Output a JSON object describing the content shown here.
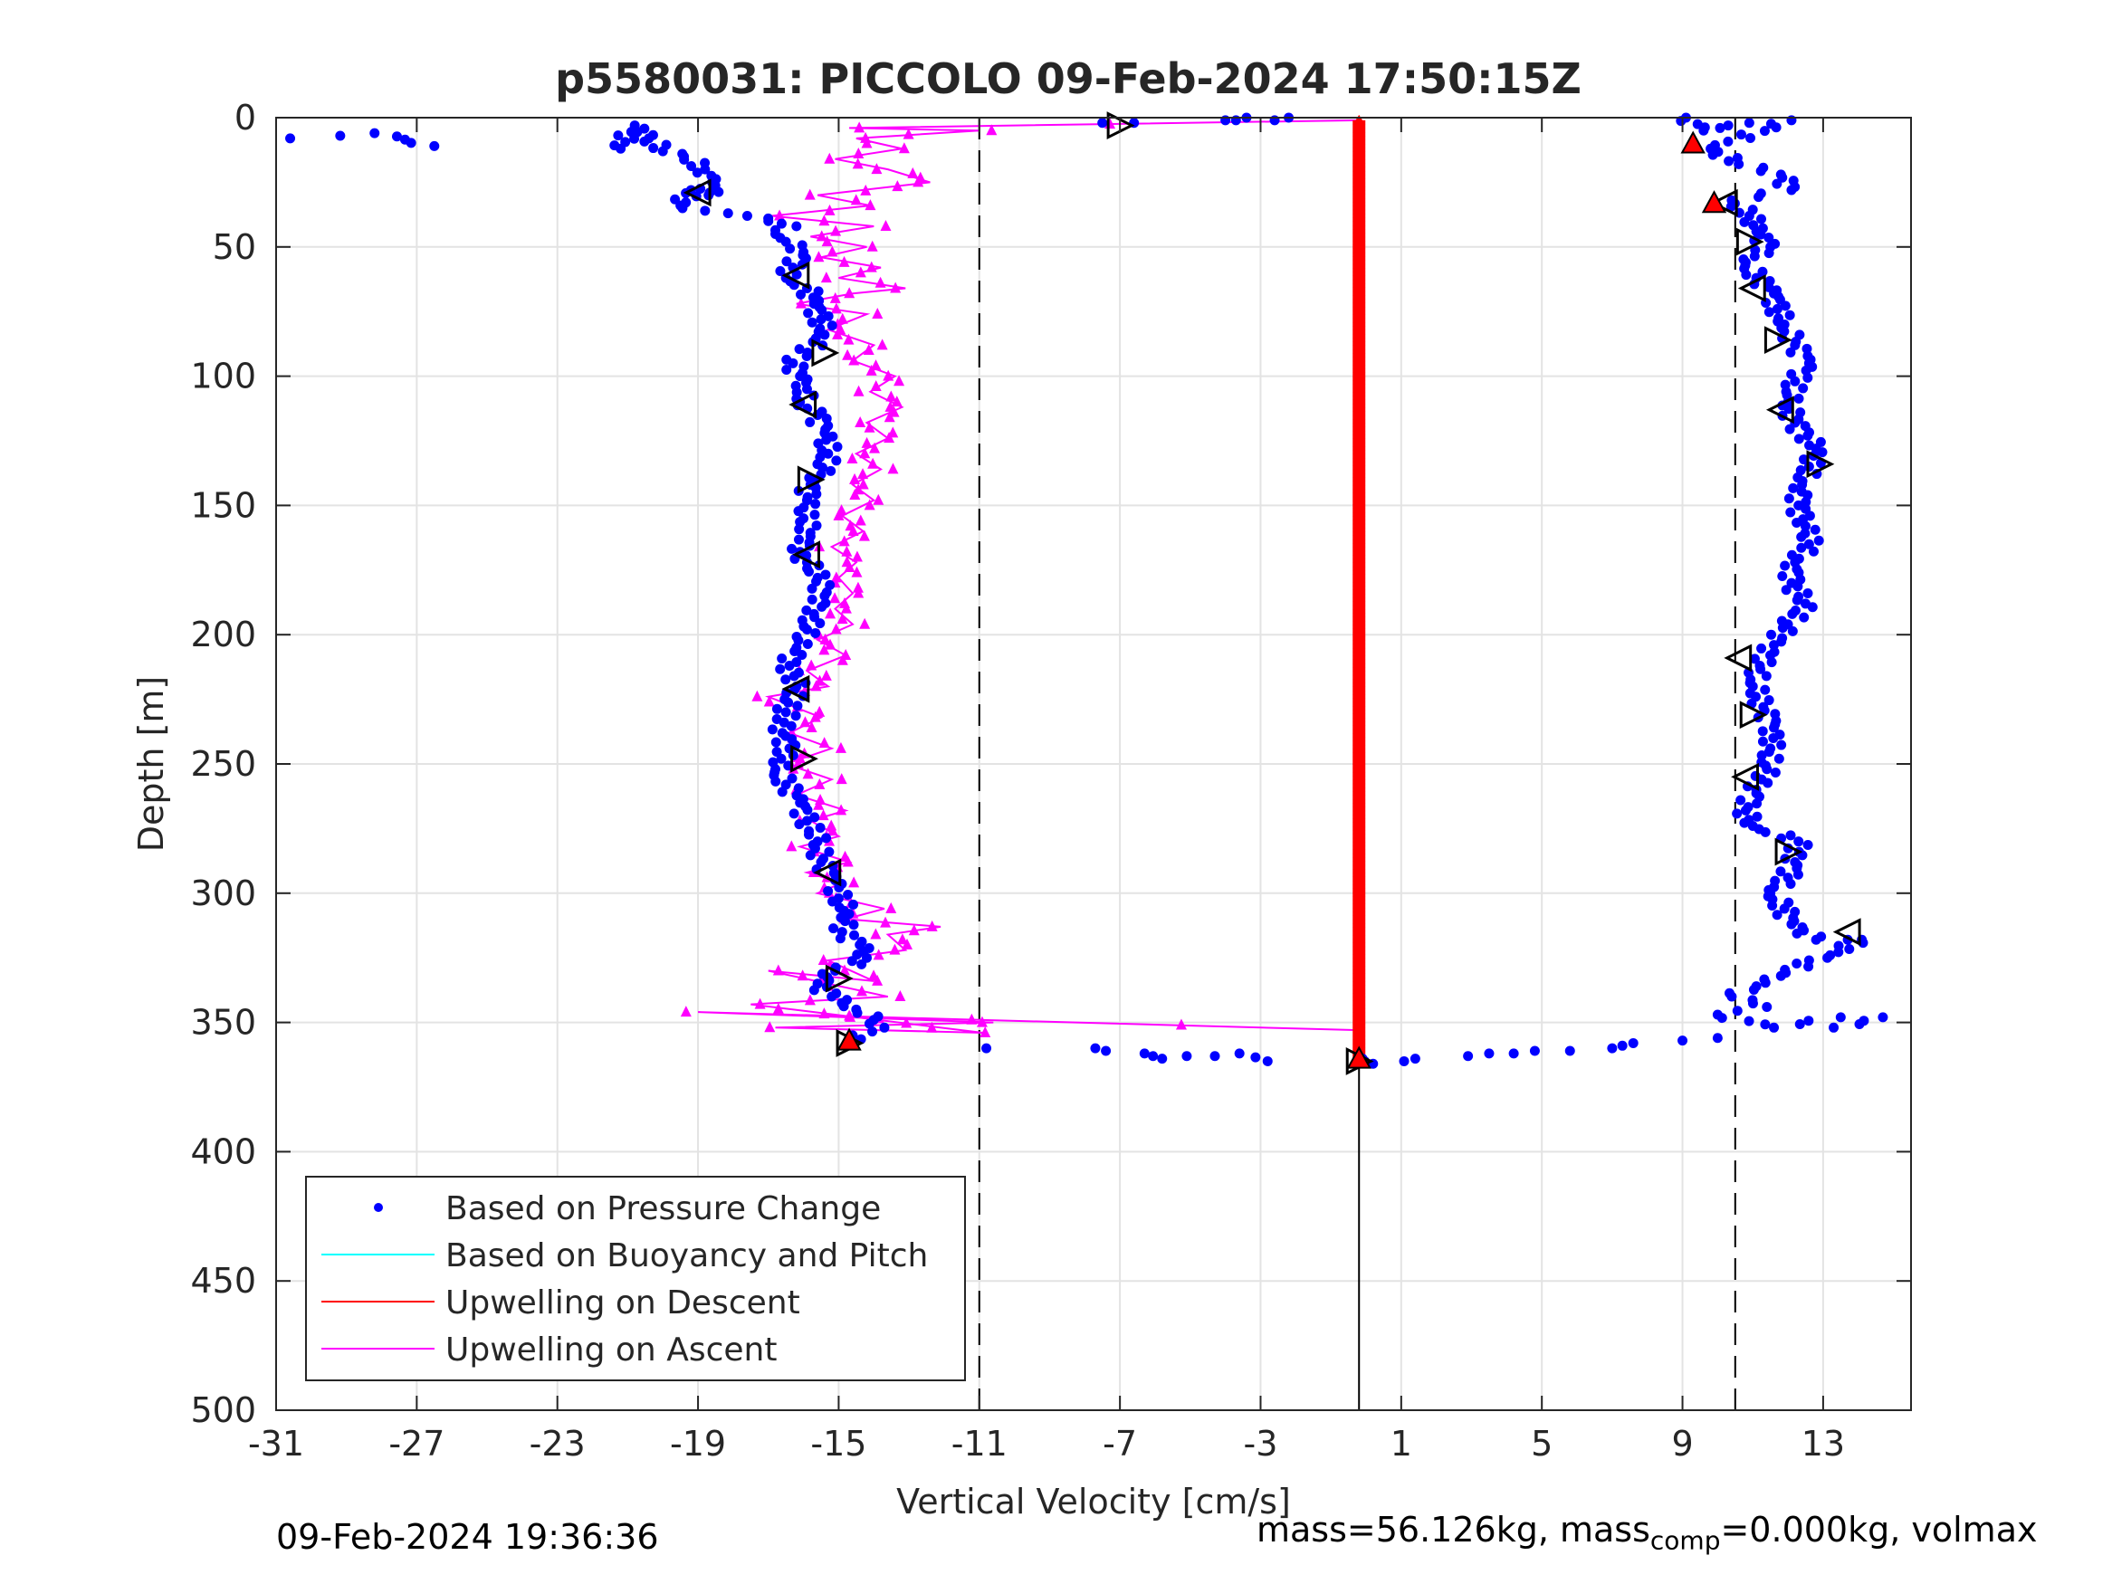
{
  "chart_data": {
    "type": "scatter",
    "title": "p5580031: PICCOLO 09-Feb-2024 17:50:15Z",
    "xlabel": "Vertical Velocity [cm/s]",
    "ylabel": "Depth [m]",
    "xlim": [
      -31,
      15.5
    ],
    "ylim": [
      0,
      500
    ],
    "y_reversed": true,
    "grid": true,
    "x_ticks": [
      "-31",
      "-27",
      "-23",
      "-19",
      "-15",
      "-11",
      "-7",
      "-3",
      "1",
      "5",
      "9",
      "13"
    ],
    "x_tick_values": [
      -31,
      -27,
      -23,
      -19,
      -15,
      -11,
      -7,
      -3,
      1,
      5,
      9,
      13
    ],
    "y_ticks": [
      "0",
      "50",
      "100",
      "150",
      "200",
      "250",
      "300",
      "350",
      "400",
      "450",
      "500"
    ],
    "y_tick_values": [
      0,
      50,
      100,
      150,
      200,
      250,
      300,
      350,
      400,
      450,
      500
    ],
    "legend_position": "bottom-left",
    "legend": [
      {
        "label": "Based on Pressure Change",
        "color": "#0000ff",
        "marker": "dot"
      },
      {
        "label": "Based on Buoyancy and Pitch",
        "color": "#00ffff",
        "marker": "line"
      },
      {
        "label": "Upwelling on Descent",
        "color": "#ff0000",
        "marker": "line"
      },
      {
        "label": "Upwelling on Ascent",
        "color": "#ff00ff",
        "marker": "line"
      }
    ],
    "reference_lines_dashed": [
      -11,
      10.5
    ],
    "reference_line_solid": {
      "x": -0.2,
      "from": 365,
      "to": 500
    },
    "series": [
      {
        "name": "Based on Pressure Change",
        "color": "#0000ff",
        "descent_points": [
          [
            -30.6,
            8
          ],
          [
            -28.2,
            6
          ],
          [
            -26.5,
            11
          ],
          [
            -21.2,
            12
          ],
          [
            -20.8,
            3
          ],
          [
            -20,
            13
          ],
          [
            -19.4,
            15
          ],
          [
            -18.8,
            20
          ],
          [
            -18.6,
            25
          ],
          [
            -18.7,
            30
          ],
          [
            -19.2,
            28
          ],
          [
            -19.5,
            34
          ],
          [
            -18.8,
            36
          ],
          [
            -17.6,
            38
          ],
          [
            -17.0,
            40
          ],
          [
            -16.2,
            42
          ],
          [
            -16.8,
            45
          ],
          [
            -16.5,
            48
          ],
          [
            -16,
            52
          ],
          [
            -16.3,
            58
          ],
          [
            -16.5,
            62
          ],
          [
            -15.9,
            66
          ],
          [
            -15.7,
            72
          ],
          [
            -15.5,
            78
          ],
          [
            -15.4,
            84
          ],
          [
            -16.3,
            95
          ],
          [
            -16.1,
            100
          ],
          [
            -15.9,
            105
          ],
          [
            -16.1,
            110
          ],
          [
            -15.6,
            115
          ],
          [
            -15.4,
            122
          ],
          [
            -15.3,
            130
          ],
          [
            -15.5,
            138
          ],
          [
            -15.8,
            142
          ],
          [
            -15.9,
            148
          ],
          [
            -16,
            155
          ],
          [
            -15.8,
            162
          ],
          [
            -16.1,
            168
          ],
          [
            -15.9,
            172
          ],
          [
            -15.6,
            178
          ],
          [
            -15.4,
            185
          ],
          [
            -15.7,
            192
          ],
          [
            -15.9,
            198
          ],
          [
            -16.2,
            205
          ],
          [
            -16.4,
            212
          ],
          [
            -16.2,
            220
          ],
          [
            -16.5,
            230
          ],
          [
            -16.6,
            238
          ],
          [
            -16.4,
            244
          ],
          [
            -16.8,
            252
          ],
          [
            -16.5,
            258
          ],
          [
            -16.1,
            265
          ],
          [
            -15.9,
            272
          ],
          [
            -15.6,
            280
          ],
          [
            -15.5,
            288
          ],
          [
            -15.1,
            295
          ],
          [
            -15.0,
            302
          ],
          [
            -14.7,
            308
          ],
          [
            -14.9,
            315
          ],
          [
            -14.4,
            320
          ],
          [
            -14.2,
            325
          ],
          [
            -15.1,
            330
          ],
          [
            -15.6,
            335
          ],
          [
            -15.2,
            340
          ],
          [
            -14.5,
            345
          ],
          [
            -14.0,
            349
          ],
          [
            -13.7,
            352
          ],
          [
            -14.6,
            355
          ],
          [
            -14.7,
            358
          ],
          [
            -10.8,
            360
          ],
          [
            -7.7,
            360
          ],
          [
            -7.4,
            361
          ],
          [
            -6.3,
            362
          ],
          [
            -5.8,
            364
          ],
          [
            -5.1,
            363
          ],
          [
            -4.3,
            363
          ],
          [
            -3.6,
            362
          ],
          [
            -2.8,
            365
          ],
          [
            -0.1,
            364
          ],
          [
            0.2,
            366
          ],
          [
            1.4,
            364
          ]
        ],
        "ascent_points": [
          [
            -7.5,
            2
          ],
          [
            -6.6,
            2
          ],
          [
            -4,
            1
          ],
          [
            -3.7,
            1
          ],
          [
            -3.4,
            0
          ],
          [
            -2.6,
            1
          ],
          [
            -2.2,
            0
          ],
          [
            9.1,
            0
          ],
          [
            9.6,
            5
          ],
          [
            10.3,
            3
          ],
          [
            10.9,
            2
          ],
          [
            12.1,
            1
          ],
          [
            9.8,
            12
          ],
          [
            10.6,
            18
          ],
          [
            11.8,
            22
          ],
          [
            12.1,
            28
          ],
          [
            10.4,
            32
          ],
          [
            10.9,
            38
          ],
          [
            11.1,
            44
          ],
          [
            11.5,
            50
          ],
          [
            10.8,
            56
          ],
          [
            11.1,
            62
          ],
          [
            11.6,
            68
          ],
          [
            11.7,
            74
          ],
          [
            11.9,
            80
          ],
          [
            12.2,
            88
          ],
          [
            12.6,
            95
          ],
          [
            12.2,
            102
          ],
          [
            12.0,
            110
          ],
          [
            12.2,
            118
          ],
          [
            12.8,
            128
          ],
          [
            12.6,
            135
          ],
          [
            12.4,
            142
          ],
          [
            12.3,
            150
          ],
          [
            12.5,
            158
          ],
          [
            12.6,
            165
          ],
          [
            12.2,
            172
          ],
          [
            12.1,
            180
          ],
          [
            12.5,
            188
          ],
          [
            12.0,
            196
          ],
          [
            11.6,
            204
          ],
          [
            11.2,
            212
          ],
          [
            11.0,
            220
          ],
          [
            11.3,
            228
          ],
          [
            11.6,
            236
          ],
          [
            11.5,
            244
          ],
          [
            11.4,
            252
          ],
          [
            11.1,
            260
          ],
          [
            10.8,
            268
          ],
          [
            11.0,
            274
          ],
          [
            12.3,
            280
          ],
          [
            12.2,
            288
          ],
          [
            12.0,
            294
          ],
          [
            11.5,
            300
          ],
          [
            11.9,
            306
          ],
          [
            12.1,
            312
          ],
          [
            12.8,
            318
          ],
          [
            13.7,
            318
          ],
          [
            14.1,
            318
          ],
          [
            13.2,
            324
          ],
          [
            12.6,
            326
          ],
          [
            11.8,
            332
          ],
          [
            11.1,
            336
          ],
          [
            10.4,
            340
          ],
          [
            11.4,
            344
          ],
          [
            10.0,
            347
          ],
          [
            11.6,
            352
          ],
          [
            13.5,
            348
          ],
          [
            14.7,
            348
          ],
          [
            13.3,
            352
          ],
          [
            10.0,
            356
          ],
          [
            9.0,
            357
          ],
          [
            7.6,
            358
          ],
          [
            7.0,
            360
          ],
          [
            5.8,
            361
          ],
          [
            4.8,
            361
          ],
          [
            4.2,
            362
          ],
          [
            3.5,
            362
          ],
          [
            2.9,
            363
          ]
        ]
      },
      {
        "name": "Based on Buoyancy and Pitch",
        "color": "#00ffff",
        "points": []
      },
      {
        "name": "Upwelling on Descent",
        "color": "#ff0000",
        "x": -0.2,
        "depth_range": [
          1,
          365
        ]
      },
      {
        "name": "Upwelling on Ascent",
        "color": "#ff00ff",
        "points": [
          [
            -0.2,
            353
          ],
          [
            -11.0,
            349
          ],
          [
            -19.0,
            346
          ],
          [
            -10.6,
            350
          ],
          [
            -16.8,
            352
          ],
          [
            -10.9,
            354
          ],
          [
            -17.5,
            343
          ],
          [
            -13.6,
            340
          ],
          [
            -17.0,
            330
          ],
          [
            -14.0,
            334
          ],
          [
            -15.3,
            326
          ],
          [
            -13.1,
            322
          ],
          [
            -13.6,
            316
          ],
          [
            -12.1,
            313
          ],
          [
            -14.8,
            310
          ],
          [
            -13.7,
            306
          ],
          [
            -15.6,
            300
          ],
          [
            -14.9,
            296
          ],
          [
            -15.9,
            292
          ],
          [
            -14.7,
            288
          ],
          [
            -16.1,
            282
          ],
          [
            -15.0,
            278
          ],
          [
            -15.8,
            272
          ],
          [
            -14.8,
            268
          ],
          [
            -16.2,
            262
          ],
          [
            -15.2,
            256
          ],
          [
            -16.5,
            250
          ],
          [
            -15.2,
            244
          ],
          [
            -16.4,
            238
          ],
          [
            -15.5,
            232
          ],
          [
            -17.0,
            224
          ],
          [
            -15.3,
            220
          ],
          [
            -15.9,
            214
          ],
          [
            -14.8,
            208
          ],
          [
            -15.6,
            202
          ],
          [
            -14.6,
            196
          ],
          [
            -15.1,
            190
          ],
          [
            -14.6,
            184
          ],
          [
            -15.0,
            178
          ],
          [
            -14.5,
            172
          ],
          [
            -15.2,
            166
          ],
          [
            -14.3,
            160
          ],
          [
            -14.9,
            154
          ],
          [
            -14.0,
            148
          ],
          [
            -14.6,
            142
          ],
          [
            -13.8,
            136
          ],
          [
            -14.5,
            130
          ],
          [
            -13.6,
            124
          ],
          [
            -14.2,
            118
          ],
          [
            -13.2,
            112
          ],
          [
            -14.1,
            106
          ],
          [
            -13.4,
            100
          ],
          [
            -14.6,
            94
          ],
          [
            -14.0,
            88
          ],
          [
            -15.3,
            82
          ],
          [
            -14.2,
            76
          ],
          [
            -16.2,
            72
          ],
          [
            -14.6,
            68
          ],
          [
            -13.1,
            66
          ],
          [
            -15.0,
            62
          ],
          [
            -13.8,
            58
          ],
          [
            -15.5,
            54
          ],
          [
            -14.2,
            50
          ],
          [
            -15.8,
            46
          ],
          [
            -14.0,
            42
          ],
          [
            -16.9,
            38
          ],
          [
            -14.1,
            34
          ],
          [
            -15.6,
            30
          ],
          [
            -12.4,
            25
          ],
          [
            -13.6,
            20
          ],
          [
            -15.1,
            16
          ],
          [
            -13.2,
            12
          ],
          [
            -14.5,
            8
          ],
          [
            -11.0,
            5
          ],
          [
            -14.7,
            4
          ],
          [
            -0.2,
            1
          ]
        ]
      }
    ],
    "triangle_markers": [
      {
        "x": -7.0,
        "depth": 3,
        "dir": "right"
      },
      {
        "x": -19.0,
        "depth": 29,
        "dir": "left"
      },
      {
        "x": -16.2,
        "depth": 61,
        "dir": "left"
      },
      {
        "x": -15.4,
        "depth": 91,
        "dir": "right"
      },
      {
        "x": -16.0,
        "depth": 111,
        "dir": "left"
      },
      {
        "x": -15.8,
        "depth": 140,
        "dir": "right"
      },
      {
        "x": -15.9,
        "depth": 169,
        "dir": "left"
      },
      {
        "x": -16.2,
        "depth": 221,
        "dir": "left"
      },
      {
        "x": -16.0,
        "depth": 248,
        "dir": "right"
      },
      {
        "x": -15.3,
        "depth": 292,
        "dir": "left"
      },
      {
        "x": -15.0,
        "depth": 333,
        "dir": "right"
      },
      {
        "x": -14.7,
        "depth": 358,
        "dir": "right"
      },
      {
        "x": 10.2,
        "depth": 33,
        "dir": "left"
      },
      {
        "x": 10.9,
        "depth": 48,
        "dir": "right"
      },
      {
        "x": 11.0,
        "depth": 66,
        "dir": "left"
      },
      {
        "x": 11.7,
        "depth": 86,
        "dir": "right"
      },
      {
        "x": 11.8,
        "depth": 113,
        "dir": "left"
      },
      {
        "x": 12.9,
        "depth": 134,
        "dir": "right"
      },
      {
        "x": 10.6,
        "depth": 209,
        "dir": "left"
      },
      {
        "x": 11.0,
        "depth": 231,
        "dir": "right"
      },
      {
        "x": 10.8,
        "depth": 255,
        "dir": "left"
      },
      {
        "x": 12.0,
        "depth": 284,
        "dir": "right"
      },
      {
        "x": 13.7,
        "depth": 315,
        "dir": "left"
      },
      {
        "x": -0.2,
        "depth": 365,
        "dir": "right"
      }
    ],
    "red_markers": [
      {
        "x": 9.3,
        "depth": 10
      },
      {
        "x": 9.9,
        "depth": 33
      },
      {
        "x": -14.7,
        "depth": 357
      },
      {
        "x": -0.2,
        "depth": 364
      }
    ]
  },
  "footer": {
    "timestamp": "09-Feb-2024 19:36:36",
    "mass_prefix": "mass=56.126kg, mass",
    "mass_sub": "comp",
    "mass_suffix": "=0.000kg, volmax"
  }
}
